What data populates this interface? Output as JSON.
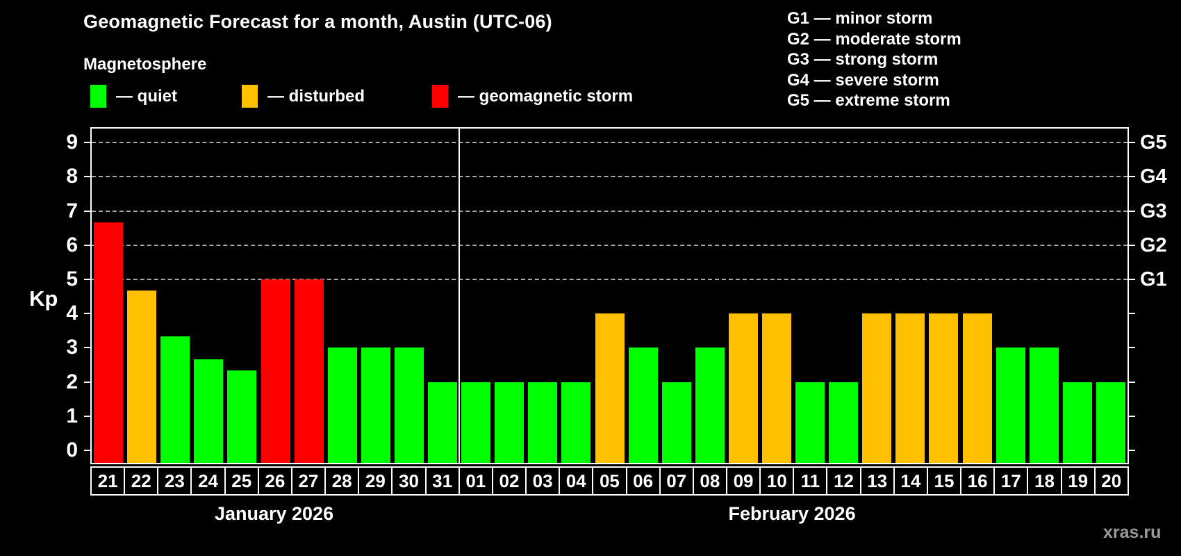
{
  "title": "Geomagnetic Forecast for a month, Austin (UTC-06)",
  "subtitle": "Magnetosphere",
  "legend": {
    "items": [
      {
        "status": "quiet",
        "label": "— quiet"
      },
      {
        "status": "disturbed",
        "label": "— disturbed"
      },
      {
        "status": "storm",
        "label": "— geomagnetic storm"
      }
    ]
  },
  "g_scale_legend": [
    "G1 — minor storm",
    "G2 — moderate storm",
    "G3 — strong storm",
    "G4 — severe storm",
    "G5 — extreme storm"
  ],
  "watermark": "xras.ru",
  "colors": {
    "quiet": "#00ff00",
    "disturbed": "#ffc000",
    "storm": "#ff0000",
    "axis": "#ffffff",
    "grid": "#a9a9a9",
    "watermark": "#999999",
    "background": "#000000",
    "text": "#ffffff"
  },
  "chart_data": {
    "type": "bar",
    "title": "Geomagnetic Forecast for a month, Austin (UTC-06)",
    "ylabel": "Kp",
    "ylim": [
      0,
      9
    ],
    "yticks": [
      0,
      1,
      2,
      3,
      4,
      5,
      6,
      7,
      8,
      9
    ],
    "grid": "horizontal dashed lines at Kp 5-9 (G1-G5), legend top-right",
    "right_axis": [
      {
        "kp": 5,
        "label": "G1"
      },
      {
        "kp": 6,
        "label": "G2"
      },
      {
        "kp": 7,
        "label": "G3"
      },
      {
        "kp": 8,
        "label": "G4"
      },
      {
        "kp": 9,
        "label": "G5"
      }
    ],
    "months": [
      {
        "label": "January 2026",
        "days": 11
      },
      {
        "label": "February 2026",
        "days": 20
      }
    ],
    "days": [
      {
        "day": "21",
        "kp": 6.67,
        "status": "storm"
      },
      {
        "day": "22",
        "kp": 4.67,
        "status": "disturbed"
      },
      {
        "day": "23",
        "kp": 3.33,
        "status": "quiet"
      },
      {
        "day": "24",
        "kp": 2.67,
        "status": "quiet"
      },
      {
        "day": "25",
        "kp": 2.33,
        "status": "quiet"
      },
      {
        "day": "26",
        "kp": 5,
        "status": "storm"
      },
      {
        "day": "27",
        "kp": 5,
        "status": "storm"
      },
      {
        "day": "28",
        "kp": 3,
        "status": "quiet"
      },
      {
        "day": "29",
        "kp": 3,
        "status": "quiet"
      },
      {
        "day": "30",
        "kp": 3,
        "status": "quiet"
      },
      {
        "day": "31",
        "kp": 2,
        "status": "quiet"
      },
      {
        "day": "01",
        "kp": 2,
        "status": "quiet"
      },
      {
        "day": "02",
        "kp": 2,
        "status": "quiet"
      },
      {
        "day": "03",
        "kp": 2,
        "status": "quiet"
      },
      {
        "day": "04",
        "kp": 2,
        "status": "quiet"
      },
      {
        "day": "05",
        "kp": 4,
        "status": "disturbed"
      },
      {
        "day": "06",
        "kp": 3,
        "status": "quiet"
      },
      {
        "day": "07",
        "kp": 2,
        "status": "quiet"
      },
      {
        "day": "08",
        "kp": 3,
        "status": "quiet"
      },
      {
        "day": "09",
        "kp": 4,
        "status": "disturbed"
      },
      {
        "day": "10",
        "kp": 4,
        "status": "disturbed"
      },
      {
        "day": "11",
        "kp": 2,
        "status": "quiet"
      },
      {
        "day": "12",
        "kp": 2,
        "status": "quiet"
      },
      {
        "day": "13",
        "kp": 4,
        "status": "disturbed"
      },
      {
        "day": "14",
        "kp": 4,
        "status": "disturbed"
      },
      {
        "day": "15",
        "kp": 4,
        "status": "disturbed"
      },
      {
        "day": "16",
        "kp": 4,
        "status": "disturbed"
      },
      {
        "day": "17",
        "kp": 3,
        "status": "quiet"
      },
      {
        "day": "18",
        "kp": 3,
        "status": "quiet"
      },
      {
        "day": "19",
        "kp": 2,
        "status": "quiet"
      },
      {
        "day": "20",
        "kp": 2,
        "status": "quiet"
      }
    ]
  }
}
